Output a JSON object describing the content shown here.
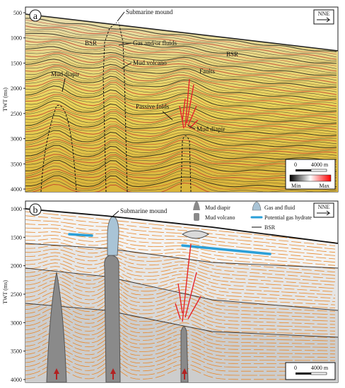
{
  "panel_a": {
    "letter": "a",
    "compass": "NNE",
    "ylabel": "TWT (ms)",
    "yticks": [
      "500",
      "1000",
      "1500",
      "2000",
      "2500",
      "3000",
      "3500",
      "4000"
    ],
    "labels": {
      "submarine_mound": "Submarine mound",
      "bsr_left": "BSR",
      "bsr_right": "BSR",
      "gas_fluids": "Gas and/or fluids",
      "mud_volcano": "Mud volcano",
      "mud_diapir_left": "Mud diapir",
      "faults": "Faults",
      "passive_folds": "Passive folds",
      "mud_diapir_right": "Mud diapir"
    },
    "scale": {
      "zero": "0",
      "length": "4000 m",
      "min": "Min",
      "max": "Max"
    },
    "colors": {
      "min": "#000000",
      "mid": "#ffffff",
      "max": "#ff0000",
      "fault": "#e3242b"
    }
  },
  "panel_b": {
    "letter": "b",
    "compass": "NNE",
    "ylabel": "TWT (ms)",
    "yticks": [
      "1000",
      "1500",
      "2000",
      "2500",
      "3000",
      "3500",
      "4000"
    ],
    "labels": {
      "submarine_mound": "Submarine mound"
    },
    "legend": {
      "mud_diapir": "Mud diapir",
      "mud_volcano": "Mud volcano",
      "gas_fluid": "Gas and fluid",
      "gas_hydrate": "Potential gas hydrate",
      "bsr": "BSR"
    },
    "scale": {
      "zero": "0",
      "length": "4000 m"
    },
    "colors": {
      "horizon": "#e8892c",
      "hydrate": "#2a9fd8",
      "diapir": "#8a8a8a",
      "gas": "#a9c4d6",
      "fault": "#e3242b",
      "bsr": "#333333"
    }
  }
}
